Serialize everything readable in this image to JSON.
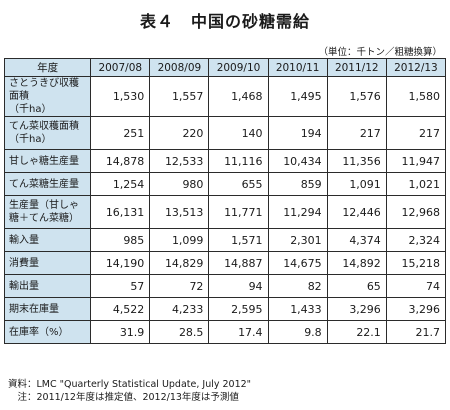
{
  "title": "表４　中国の砂糖需給",
  "unit_note": "（単位：千トン／粗糖換算）",
  "table": {
    "corner": "年度",
    "columns": [
      "2007/08",
      "2008/09",
      "2009/10",
      "2010/11",
      "2011/12",
      "2012/13"
    ],
    "rows": [
      {
        "label": "さとうきび収穫面積\n（千ha）",
        "values": [
          "1,530",
          "1,557",
          "1,468",
          "1,495",
          "1,576",
          "1,580"
        ]
      },
      {
        "label": "てん菜収穫面積\n（千ha）",
        "values": [
          "251",
          "220",
          "140",
          "194",
          "217",
          "217"
        ]
      },
      {
        "label": "甘しゃ糖生産量",
        "values": [
          "14,878",
          "12,533",
          "11,116",
          "10,434",
          "11,356",
          "11,947"
        ]
      },
      {
        "label": "てん菜糖生産量",
        "values": [
          "1,254",
          "980",
          "655",
          "859",
          "1,091",
          "1,021"
        ]
      },
      {
        "label": "生産量（甘しゃ\n糖＋てん菜糖）",
        "values": [
          "16,131",
          "13,513",
          "11,771",
          "11,294",
          "12,446",
          "12,968"
        ]
      },
      {
        "label": "輸入量",
        "values": [
          "985",
          "1,099",
          "1,571",
          "2,301",
          "4,374",
          "2,324"
        ]
      },
      {
        "label": "消費量",
        "values": [
          "14,190",
          "14,829",
          "14,887",
          "14,675",
          "14,892",
          "15,218"
        ]
      },
      {
        "label": "輸出量",
        "values": [
          "57",
          "72",
          "94",
          "82",
          "65",
          "74"
        ]
      },
      {
        "label": "期末在庫量",
        "values": [
          "4,522",
          "4,233",
          "2,595",
          "1,433",
          "3,296",
          "3,296"
        ]
      },
      {
        "label": "在庫率（%）",
        "values": [
          "31.9",
          "28.5",
          "17.4",
          "9.8",
          "22.1",
          "21.7"
        ]
      }
    ]
  },
  "footnotes": {
    "source": "資料：LMC \"Quarterly Statistical Update, July 2012\"",
    "note": "　注：2011/12年度は推定値、2012/13年度は予測値"
  }
}
